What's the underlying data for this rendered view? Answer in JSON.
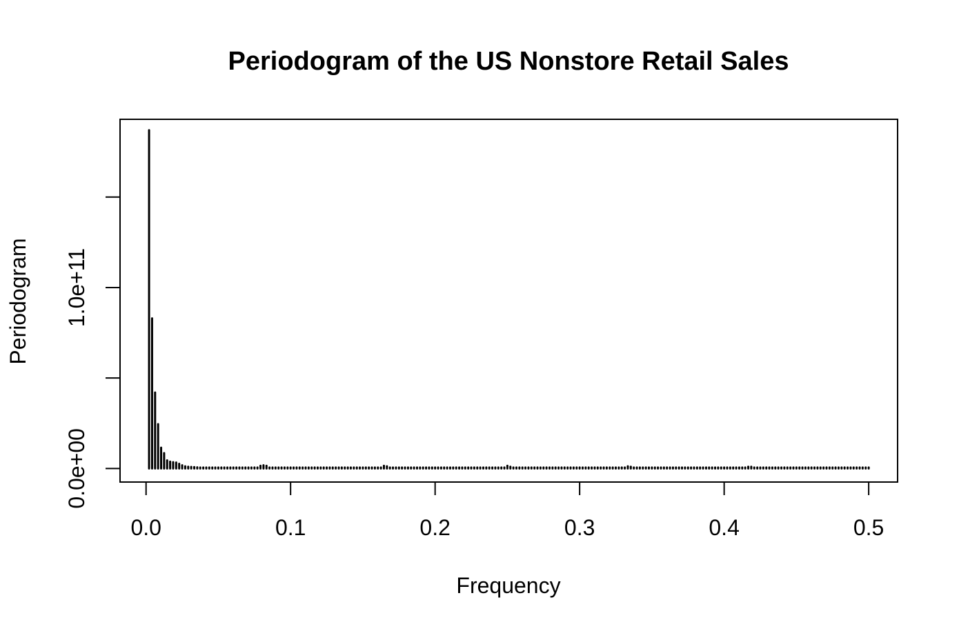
{
  "chart_data": {
    "type": "bar",
    "title": "Periodogram of the US Nonstore Retail Sales",
    "xlabel": "Frequency",
    "ylabel": "Periodogram",
    "xlim": [
      -0.018,
      0.52
    ],
    "ylim": [
      -7500000000.0,
      193000000000.0
    ],
    "x_ticks": [
      {
        "value": 0.0,
        "label": "0.0"
      },
      {
        "value": 0.1,
        "label": "0.1"
      },
      {
        "value": 0.2,
        "label": "0.2"
      },
      {
        "value": 0.3,
        "label": "0.3"
      },
      {
        "value": 0.4,
        "label": "0.4"
      },
      {
        "value": 0.5,
        "label": "0.5"
      }
    ],
    "y_ticks": [
      {
        "value": 0,
        "label": "0.0e+00"
      },
      {
        "value": 50000000000.0,
        "label": ""
      },
      {
        "value": 100000000000.0,
        "label": "1.0e+11"
      },
      {
        "value": 150000000000.0,
        "label": ""
      }
    ],
    "series": [
      {
        "n_points": 240,
        "freq_step": 0.0020833,
        "values": [
          187000000000.0,
          83000000000.0,
          42000000000.0,
          24500000000.0,
          11500000000.0,
          8500000000.0,
          4500000000.0,
          3800000000.0,
          3500000000.0,
          3300000000.0,
          2600000000.0,
          1800000000.0,
          1200000000.0,
          1000000000.0,
          900000000.0,
          800000000.0,
          650000000.0,
          550000000.0,
          480000000.0,
          420000000.0,
          380000000.0,
          340000000.0,
          310000000.0,
          290000000.0,
          270000000.0,
          260000000.0,
          250000000.0,
          240000000.0,
          230000000.0,
          230000000.0,
          220000000.0,
          220000000.0,
          210000000.0,
          210000000.0,
          200000000.0,
          200000000.0,
          200000000.0,
          1500000000.0,
          1800000000.0,
          1500000000.0,
          200000000.0,
          190000000.0,
          190000000.0,
          190000000.0,
          180000000.0,
          180000000.0,
          180000000.0,
          180000000.0,
          180000000.0,
          170000000.0,
          170000000.0,
          170000000.0,
          170000000.0,
          170000000.0,
          170000000.0,
          160000000.0,
          160000000.0,
          160000000.0,
          160000000.0,
          160000000.0,
          160000000.0,
          160000000.0,
          160000000.0,
          160000000.0,
          160000000.0,
          160000000.0,
          160000000.0,
          160000000.0,
          160000000.0,
          160000000.0,
          160000000.0,
          160000000.0,
          160000000.0,
          160000000.0,
          160000000.0,
          160000000.0,
          160000000.0,
          160000000.0,
          1500000000.0,
          1200000000.0,
          150000000.0,
          150000000.0,
          150000000.0,
          150000000.0,
          150000000.0,
          150000000.0,
          150000000.0,
          150000000.0,
          150000000.0,
          150000000.0,
          150000000.0,
          150000000.0,
          150000000.0,
          150000000.0,
          150000000.0,
          150000000.0,
          150000000.0,
          150000000.0,
          150000000.0,
          150000000.0,
          150000000.0,
          150000000.0,
          150000000.0,
          150000000.0,
          150000000.0,
          150000000.0,
          150000000.0,
          150000000.0,
          150000000.0,
          150000000.0,
          150000000.0,
          150000000.0,
          150000000.0,
          150000000.0,
          150000000.0,
          150000000.0,
          150000000.0,
          150000000.0,
          150000000.0,
          1500000000.0,
          1000000000.0,
          150000000.0,
          150000000.0,
          150000000.0,
          150000000.0,
          150000000.0,
          150000000.0,
          150000000.0,
          150000000.0,
          150000000.0,
          150000000.0,
          150000000.0,
          150000000.0,
          150000000.0,
          150000000.0,
          150000000.0,
          150000000.0,
          150000000.0,
          150000000.0,
          150000000.0,
          150000000.0,
          150000000.0,
          150000000.0,
          150000000.0,
          150000000.0,
          150000000.0,
          150000000.0,
          150000000.0,
          150000000.0,
          150000000.0,
          150000000.0,
          150000000.0,
          150000000.0,
          150000000.0,
          150000000.0,
          150000000.0,
          150000000.0,
          150000000.0,
          150000000.0,
          1200000000.0,
          1000000000.0,
          150000000.0,
          150000000.0,
          150000000.0,
          150000000.0,
          150000000.0,
          150000000.0,
          150000000.0,
          150000000.0,
          150000000.0,
          150000000.0,
          150000000.0,
          150000000.0,
          150000000.0,
          150000000.0,
          150000000.0,
          150000000.0,
          150000000.0,
          150000000.0,
          150000000.0,
          150000000.0,
          150000000.0,
          150000000.0,
          150000000.0,
          150000000.0,
          150000000.0,
          150000000.0,
          150000000.0,
          150000000.0,
          150000000.0,
          150000000.0,
          150000000.0,
          150000000.0,
          150000000.0,
          150000000.0,
          150000000.0,
          150000000.0,
          150000000.0,
          150000000.0,
          1000000000.0,
          1000000000.0,
          150000000.0,
          150000000.0,
          150000000.0,
          150000000.0,
          150000000.0,
          150000000.0,
          150000000.0,
          150000000.0,
          150000000.0,
          150000000.0,
          150000000.0,
          150000000.0,
          150000000.0,
          150000000.0,
          150000000.0,
          150000000.0,
          150000000.0,
          150000000.0,
          150000000.0,
          150000000.0,
          150000000.0,
          150000000.0,
          150000000.0,
          150000000.0,
          150000000.0,
          150000000.0,
          150000000.0,
          150000000.0,
          150000000.0,
          150000000.0,
          150000000.0,
          150000000.0,
          150000000.0,
          150000000.0,
          150000000.0,
          150000000.0,
          150000000.0,
          150000000.0,
          150000000.0
        ]
      }
    ],
    "grid": false,
    "legend": "none",
    "colors": {
      "bars": "#000000",
      "axes": "#000000",
      "background": "#ffffff"
    }
  }
}
